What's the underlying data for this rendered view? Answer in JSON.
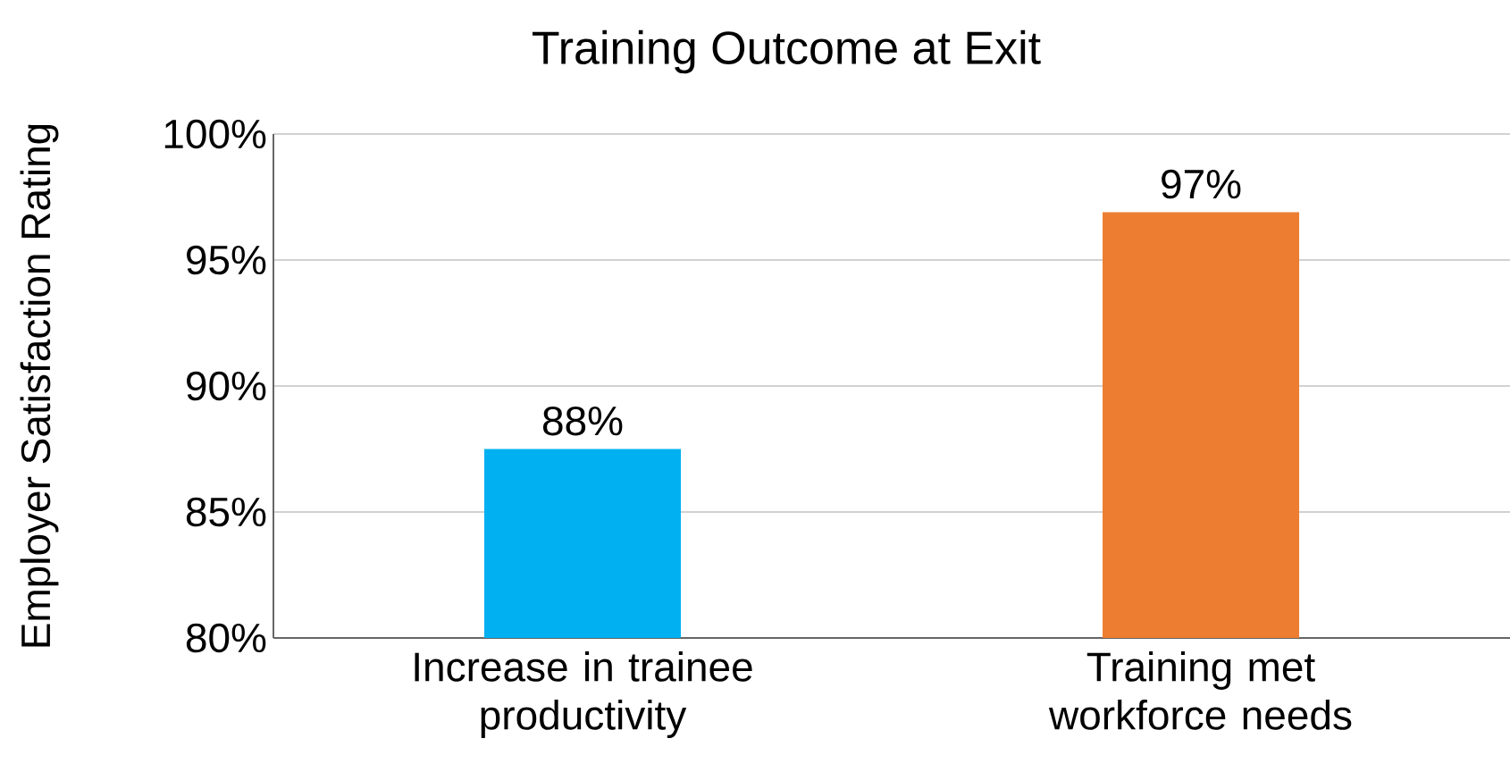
{
  "chart_data": {
    "type": "bar",
    "title": "Training Outcome at Exit",
    "ylabel": "Employer Satisfaction Rating",
    "categories": [
      "Increase in trainee productivity",
      "Training met workforce needs"
    ],
    "values": [
      87.5,
      96.9
    ],
    "colors": [
      "#00b0f0",
      "#ed7d31"
    ],
    "value_labels": [
      "88%",
      "97%"
    ],
    "ylim": [
      80,
      100
    ],
    "yticks": [
      {
        "value": 80,
        "label": "80%"
      },
      {
        "value": 85,
        "label": "85%"
      },
      {
        "value": 90,
        "label": "90%"
      },
      {
        "value": 95,
        "label": "95%"
      },
      {
        "value": 100,
        "label": "100%"
      }
    ],
    "grid": "y"
  }
}
